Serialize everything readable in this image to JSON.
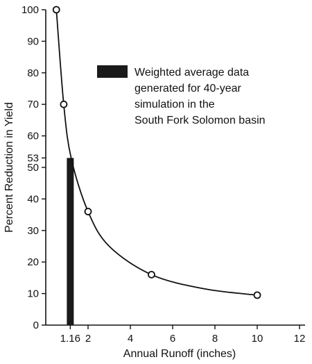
{
  "chart_data": {
    "type": "scatter",
    "xlabel": "Annual Runoff (inches)",
    "ylabel": "Percent Reduction in Yield",
    "xlim": [
      0,
      12
    ],
    "ylim": [
      0,
      100
    ],
    "x_ticks": [
      {
        "value": 1.16,
        "label": "1.16"
      },
      {
        "value": 2,
        "label": "2"
      },
      {
        "value": 4,
        "label": "4"
      },
      {
        "value": 6,
        "label": "6"
      },
      {
        "value": 8,
        "label": "8"
      },
      {
        "value": 10,
        "label": "10"
      },
      {
        "value": 12,
        "label": "12"
      }
    ],
    "y_ticks": [
      {
        "value": 0,
        "label": "0"
      },
      {
        "value": 10,
        "label": "10"
      },
      {
        "value": 20,
        "label": "20"
      },
      {
        "value": 30,
        "label": "30"
      },
      {
        "value": 40,
        "label": "40"
      },
      {
        "value": 50,
        "label": "50"
      },
      {
        "value": 53,
        "label": "53"
      },
      {
        "value": 60,
        "label": "60"
      },
      {
        "value": 70,
        "label": "70"
      },
      {
        "value": 80,
        "label": "80"
      },
      {
        "value": 90,
        "label": "90"
      },
      {
        "value": 100,
        "label": "100"
      }
    ],
    "points": [
      {
        "x": 0.5,
        "y": 100
      },
      {
        "x": 0.85,
        "y": 70
      },
      {
        "x": 2.0,
        "y": 36
      },
      {
        "x": 5.0,
        "y": 16
      },
      {
        "x": 10.0,
        "y": 9.5
      }
    ],
    "curve": [
      {
        "x": 0.5,
        "y": 100
      },
      {
        "x": 0.85,
        "y": 70
      },
      {
        "x": 1.2,
        "y": 53
      },
      {
        "x": 2.0,
        "y": 36
      },
      {
        "x": 3.0,
        "y": 25
      },
      {
        "x": 5.0,
        "y": 16
      },
      {
        "x": 7.5,
        "y": 11.5
      },
      {
        "x": 10.0,
        "y": 9.5
      }
    ],
    "bar": {
      "x": 1.16,
      "y": 53
    },
    "legend": {
      "text": [
        "Weighted average data",
        "generated for 40-year",
        "simulation in the",
        "South Fork Solomon basin"
      ],
      "position": "top-right"
    },
    "grid": false,
    "colors": {
      "ink": "#111111",
      "bar": "#1a1a1a",
      "background": "#ffffff"
    }
  }
}
